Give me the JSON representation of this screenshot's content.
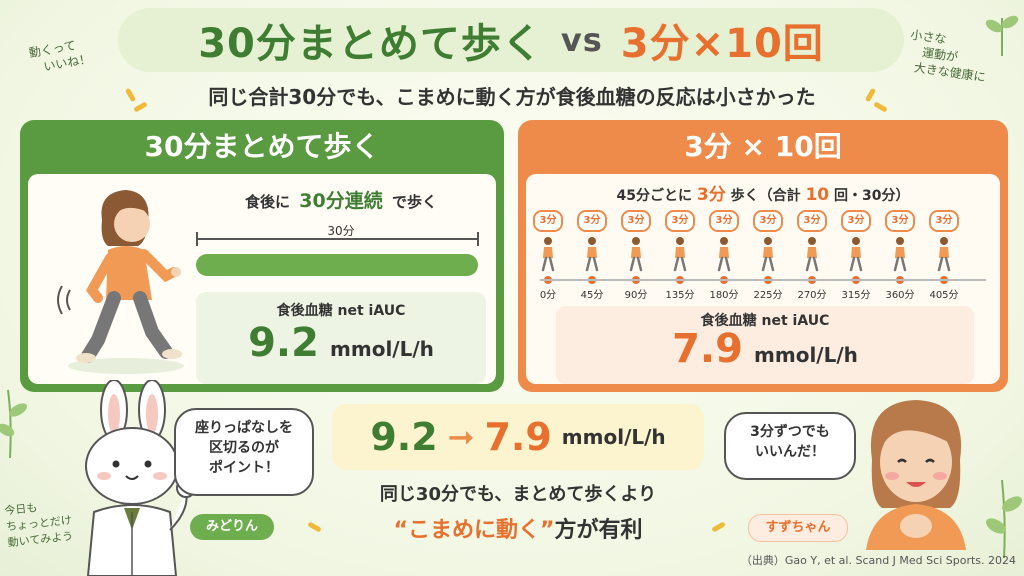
{
  "title": {
    "left": "30分まとめて歩く",
    "vs": "vs",
    "right": "3分×10回"
  },
  "subtitle": "同じ合計30分でも、こまめに動く方が食後血糖の反応は小さかった",
  "notes": {
    "top_left": [
      "動くって",
      "いいね！"
    ],
    "top_right": [
      "小さな",
      "運動が",
      "大きな健康に"
    ],
    "bottom_left": [
      "今日も",
      "ちょっとだけ",
      "動いてみよう"
    ]
  },
  "left_panel": {
    "heading": "30分まとめて歩く",
    "instruction_pre": "食後に",
    "instruction_em": "30分連続",
    "instruction_post": "で歩く",
    "bar_label": "30分",
    "result_label": "食後血糖 net iAUC",
    "result_value": "9.2",
    "result_unit": "mmol/L/h"
  },
  "right_panel": {
    "heading": "3分 × 10回",
    "instruction_pre": "45分ごとに",
    "instruction_em": "3分",
    "instruction_mid": "歩く（合計",
    "instruction_em2": "10",
    "instruction_post": "回・30分）",
    "bubble_label": "3分",
    "ticks": [
      "0分",
      "45分",
      "90分",
      "135分",
      "180分",
      "225分",
      "270分",
      "315分",
      "360分",
      "405分"
    ],
    "result_label": "食後血糖 net iAUC",
    "result_value": "7.9",
    "result_unit": "mmol/L/h"
  },
  "comparison": {
    "from": "9.2",
    "arrow": "➞",
    "to": "7.9",
    "unit": "mmol/L/h"
  },
  "conclusion": {
    "line1": "同じ30分でも、まとめて歩くより",
    "line2_em": "“こまめに動く”",
    "line2_post": "方が有利"
  },
  "rabbit": {
    "speech": [
      "座りっぱなしを",
      "区切るのが",
      "ポイント！"
    ],
    "name": "みどりん"
  },
  "girl": {
    "speech": [
      "3分ずつでも",
      "いいんだ！"
    ],
    "name": "すずちゃん"
  },
  "source": "（出典）Gao Y, et al. Scand J Med Sci Sports. 2024",
  "colors": {
    "green": "#3f7d32",
    "orange": "#e8702e",
    "panel_green": "#5a9a40",
    "panel_orange": "#ee8b4a"
  }
}
